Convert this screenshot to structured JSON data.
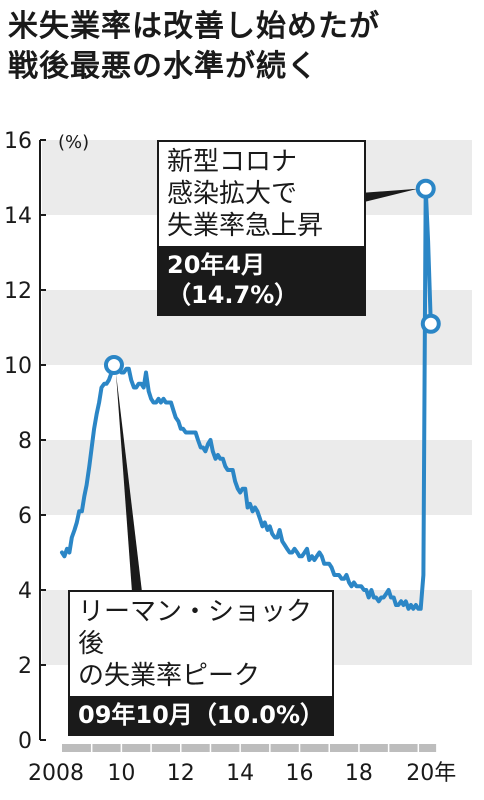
{
  "header": {
    "title_line1": "米失業率は改善し始めたが",
    "title_line2": "戦後最悪の水準が続く"
  },
  "chart_data": {
    "type": "line",
    "unit": "(%)",
    "ylim": [
      0,
      16
    ],
    "yticks": [
      "0",
      "2",
      "4",
      "6",
      "8",
      "10",
      "12",
      "14",
      "16"
    ],
    "xlim": [
      2008.0,
      2021.0
    ],
    "xticks": [
      {
        "x": 2008,
        "label": "2008"
      },
      {
        "x": 2010,
        "label": "10"
      },
      {
        "x": 2012,
        "label": "12"
      },
      {
        "x": 2014,
        "label": "14"
      },
      {
        "x": 2016,
        "label": "16"
      },
      {
        "x": 2018,
        "label": "18"
      },
      {
        "x": 2020,
        "label": "20年"
      }
    ],
    "series": [
      {
        "color": "#2b86c6",
        "points": [
          [
            2008.0,
            5.0
          ],
          [
            2008.08,
            4.9
          ],
          [
            2008.17,
            5.1
          ],
          [
            2008.25,
            5.0
          ],
          [
            2008.33,
            5.4
          ],
          [
            2008.42,
            5.6
          ],
          [
            2008.5,
            5.8
          ],
          [
            2008.58,
            6.1
          ],
          [
            2008.67,
            6.1
          ],
          [
            2008.75,
            6.5
          ],
          [
            2008.83,
            6.8
          ],
          [
            2008.92,
            7.3
          ],
          [
            2009.0,
            7.8
          ],
          [
            2009.08,
            8.3
          ],
          [
            2009.17,
            8.7
          ],
          [
            2009.25,
            9.0
          ],
          [
            2009.33,
            9.4
          ],
          [
            2009.42,
            9.5
          ],
          [
            2009.5,
            9.5
          ],
          [
            2009.58,
            9.6
          ],
          [
            2009.67,
            9.8
          ],
          [
            2009.75,
            10.0
          ],
          [
            2009.83,
            9.9
          ],
          [
            2009.92,
            9.9
          ],
          [
            2010.0,
            9.8
          ],
          [
            2010.08,
            9.8
          ],
          [
            2010.17,
            9.9
          ],
          [
            2010.25,
            9.9
          ],
          [
            2010.33,
            9.6
          ],
          [
            2010.42,
            9.4
          ],
          [
            2010.5,
            9.4
          ],
          [
            2010.58,
            9.5
          ],
          [
            2010.67,
            9.5
          ],
          [
            2010.75,
            9.4
          ],
          [
            2010.83,
            9.8
          ],
          [
            2010.92,
            9.3
          ],
          [
            2011.0,
            9.1
          ],
          [
            2011.08,
            9.0
          ],
          [
            2011.17,
            9.0
          ],
          [
            2011.25,
            9.1
          ],
          [
            2011.33,
            9.0
          ],
          [
            2011.42,
            9.1
          ],
          [
            2011.5,
            9.0
          ],
          [
            2011.58,
            9.0
          ],
          [
            2011.67,
            9.0
          ],
          [
            2011.75,
            8.8
          ],
          [
            2011.83,
            8.6
          ],
          [
            2011.92,
            8.5
          ],
          [
            2012.0,
            8.3
          ],
          [
            2012.08,
            8.3
          ],
          [
            2012.17,
            8.2
          ],
          [
            2012.25,
            8.2
          ],
          [
            2012.33,
            8.2
          ],
          [
            2012.42,
            8.2
          ],
          [
            2012.5,
            8.2
          ],
          [
            2012.58,
            8.0
          ],
          [
            2012.67,
            7.8
          ],
          [
            2012.75,
            7.8
          ],
          [
            2012.83,
            7.7
          ],
          [
            2012.92,
            7.9
          ],
          [
            2013.0,
            8.0
          ],
          [
            2013.08,
            7.7
          ],
          [
            2013.17,
            7.5
          ],
          [
            2013.25,
            7.6
          ],
          [
            2013.33,
            7.5
          ],
          [
            2013.42,
            7.5
          ],
          [
            2013.5,
            7.3
          ],
          [
            2013.58,
            7.2
          ],
          [
            2013.67,
            7.2
          ],
          [
            2013.75,
            7.2
          ],
          [
            2013.83,
            6.9
          ],
          [
            2013.92,
            6.7
          ],
          [
            2014.0,
            6.6
          ],
          [
            2014.08,
            6.7
          ],
          [
            2014.17,
            6.7
          ],
          [
            2014.25,
            6.2
          ],
          [
            2014.33,
            6.3
          ],
          [
            2014.42,
            6.1
          ],
          [
            2014.5,
            6.2
          ],
          [
            2014.58,
            6.1
          ],
          [
            2014.67,
            5.9
          ],
          [
            2014.75,
            5.7
          ],
          [
            2014.83,
            5.8
          ],
          [
            2014.92,
            5.6
          ],
          [
            2015.0,
            5.7
          ],
          [
            2015.08,
            5.5
          ],
          [
            2015.17,
            5.4
          ],
          [
            2015.25,
            5.4
          ],
          [
            2015.33,
            5.6
          ],
          [
            2015.42,
            5.3
          ],
          [
            2015.5,
            5.2
          ],
          [
            2015.58,
            5.1
          ],
          [
            2015.67,
            5.0
          ],
          [
            2015.75,
            5.0
          ],
          [
            2015.83,
            5.1
          ],
          [
            2015.92,
            5.0
          ],
          [
            2016.0,
            4.9
          ],
          [
            2016.08,
            4.9
          ],
          [
            2016.17,
            5.0
          ],
          [
            2016.25,
            5.1
          ],
          [
            2016.33,
            4.8
          ],
          [
            2016.42,
            4.9
          ],
          [
            2016.5,
            4.8
          ],
          [
            2016.58,
            4.9
          ],
          [
            2016.67,
            5.0
          ],
          [
            2016.75,
            4.9
          ],
          [
            2016.83,
            4.7
          ],
          [
            2016.92,
            4.7
          ],
          [
            2017.0,
            4.7
          ],
          [
            2017.08,
            4.6
          ],
          [
            2017.17,
            4.4
          ],
          [
            2017.25,
            4.4
          ],
          [
            2017.33,
            4.4
          ],
          [
            2017.42,
            4.3
          ],
          [
            2017.5,
            4.3
          ],
          [
            2017.58,
            4.4
          ],
          [
            2017.67,
            4.2
          ],
          [
            2017.75,
            4.1
          ],
          [
            2017.83,
            4.2
          ],
          [
            2017.92,
            4.1
          ],
          [
            2018.0,
            4.1
          ],
          [
            2018.08,
            4.1
          ],
          [
            2018.17,
            4.0
          ],
          [
            2018.25,
            4.0
          ],
          [
            2018.33,
            3.8
          ],
          [
            2018.42,
            4.0
          ],
          [
            2018.5,
            3.8
          ],
          [
            2018.58,
            3.8
          ],
          [
            2018.67,
            3.7
          ],
          [
            2018.75,
            3.8
          ],
          [
            2018.83,
            3.8
          ],
          [
            2018.92,
            3.9
          ],
          [
            2019.0,
            4.0
          ],
          [
            2019.08,
            3.8
          ],
          [
            2019.17,
            3.8
          ],
          [
            2019.25,
            3.6
          ],
          [
            2019.33,
            3.6
          ],
          [
            2019.42,
            3.7
          ],
          [
            2019.5,
            3.6
          ],
          [
            2019.58,
            3.7
          ],
          [
            2019.67,
            3.5
          ],
          [
            2019.75,
            3.6
          ],
          [
            2019.83,
            3.5
          ],
          [
            2019.92,
            3.6
          ],
          [
            2020.0,
            3.5
          ],
          [
            2020.08,
            3.5
          ],
          [
            2020.17,
            4.4
          ],
          [
            2020.25,
            14.7
          ],
          [
            2020.33,
            13.3
          ],
          [
            2020.42,
            11.1
          ]
        ]
      }
    ],
    "highlight_points": [
      [
        2009.75,
        10.0
      ],
      [
        2020.25,
        14.7
      ],
      [
        2020.42,
        11.1
      ]
    ],
    "grid": "alternating horizontal bands"
  },
  "annotations": {
    "covid": {
      "text": "新型コロナ\n感染拡大で\n失業率急上昇",
      "value": "20年4月\n（14.7%）"
    },
    "lehman": {
      "text": "リーマン・ショック後\nの失業率ピーク",
      "value": "09年10月（10.0%）"
    }
  },
  "colors": {
    "line": "#2b86c6",
    "band": "#ebebeb",
    "dark_label": "#1a1a1a"
  }
}
